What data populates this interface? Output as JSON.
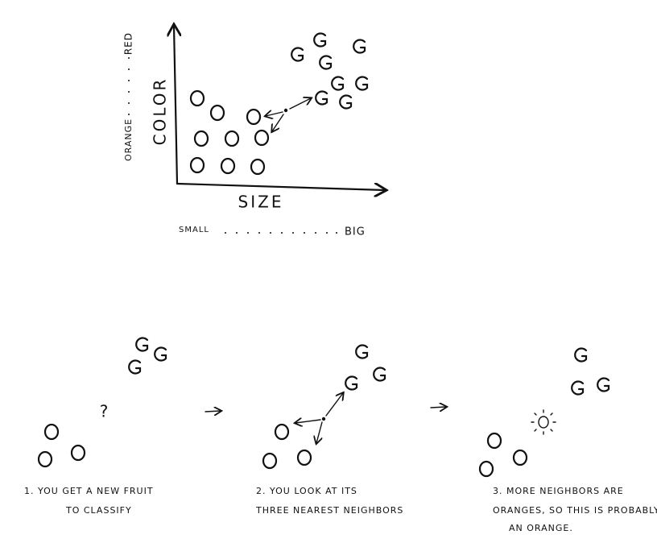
{
  "top_chart": {
    "y_axis_label": "COLOR",
    "y_axis_low": "ORANGE",
    "y_axis_high": "RED",
    "x_axis_label": "SIZE",
    "x_axis_low": "SMALL",
    "x_axis_high": "BIG"
  },
  "steps": [
    {
      "caption_lines": [
        "1. YOU GET A NEW FRUIT",
        "TO CLASSIFY"
      ],
      "unknown_mark": "?"
    },
    {
      "caption_lines": [
        "2. YOU LOOK AT ITS",
        "THREE NEAREST NEIGHBORS"
      ]
    },
    {
      "caption_lines": [
        "3. MORE NEIGHBORS ARE",
        "ORANGES, SO THIS IS PROBABLY",
        "AN ORANGE."
      ]
    }
  ]
}
